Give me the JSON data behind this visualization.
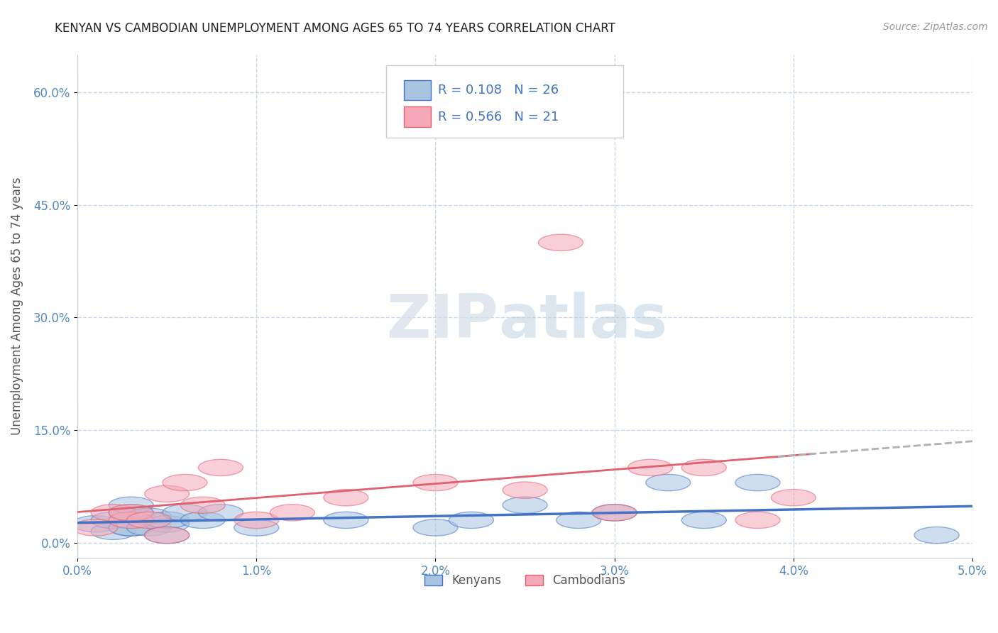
{
  "title": "KENYAN VS CAMBODIAN UNEMPLOYMENT AMONG AGES 65 TO 74 YEARS CORRELATION CHART",
  "source_text": "Source: ZipAtlas.com",
  "ylabel": "Unemployment Among Ages 65 to 74 years",
  "xlim": [
    0.0,
    0.05
  ],
  "ylim": [
    -0.02,
    0.65
  ],
  "xticks": [
    0.0,
    0.01,
    0.02,
    0.03,
    0.04,
    0.05
  ],
  "xticklabels": [
    "0.0%",
    "1.0%",
    "2.0%",
    "3.0%",
    "4.0%",
    "5.0%"
  ],
  "yticks": [
    0.0,
    0.15,
    0.3,
    0.45,
    0.6
  ],
  "yticklabels": [
    "0.0%",
    "15.0%",
    "30.0%",
    "45.0%",
    "60.0%"
  ],
  "kenyan_color": "#a8c4e0",
  "cambodian_color": "#f4a8b8",
  "kenyan_edge_color": "#4472c4",
  "cambodian_edge_color": "#e06070",
  "kenyan_line_color": "#4472c4",
  "cambodian_line_color": "#e06070",
  "legend_text_color": "#4472c4",
  "kenyan_R": 0.108,
  "kenyan_N": 26,
  "cambodian_R": 0.566,
  "cambodian_N": 21,
  "kenyan_x": [
    0.001,
    0.002,
    0.002,
    0.003,
    0.003,
    0.003,
    0.003,
    0.004,
    0.004,
    0.005,
    0.005,
    0.005,
    0.006,
    0.007,
    0.008,
    0.01,
    0.015,
    0.02,
    0.022,
    0.025,
    0.028,
    0.03,
    0.033,
    0.035,
    0.038,
    0.048
  ],
  "kenyan_y": [
    0.025,
    0.015,
    0.03,
    0.02,
    0.04,
    0.05,
    0.02,
    0.035,
    0.02,
    0.025,
    0.03,
    0.01,
    0.04,
    0.03,
    0.04,
    0.02,
    0.03,
    0.02,
    0.03,
    0.05,
    0.03,
    0.04,
    0.08,
    0.03,
    0.08,
    0.01
  ],
  "cambodian_x": [
    0.001,
    0.002,
    0.003,
    0.003,
    0.004,
    0.005,
    0.005,
    0.006,
    0.007,
    0.008,
    0.01,
    0.012,
    0.015,
    0.02,
    0.025,
    0.027,
    0.03,
    0.032,
    0.035,
    0.038,
    0.04
  ],
  "cambodian_y": [
    0.02,
    0.04,
    0.03,
    0.04,
    0.03,
    0.01,
    0.065,
    0.08,
    0.05,
    0.1,
    0.03,
    0.04,
    0.06,
    0.08,
    0.07,
    0.4,
    0.04,
    0.1,
    0.1,
    0.03,
    0.06
  ],
  "watermark_ZIP": "ZIP",
  "watermark_atlas": "atlas",
  "background_color": "#ffffff",
  "grid_color": "#c8d8e8",
  "legend_kenyan_label": "Kenyans",
  "legend_cambodian_label": "Cambodians",
  "dashed_line_color": "#b0b0b0",
  "tick_color": "#5588bb"
}
